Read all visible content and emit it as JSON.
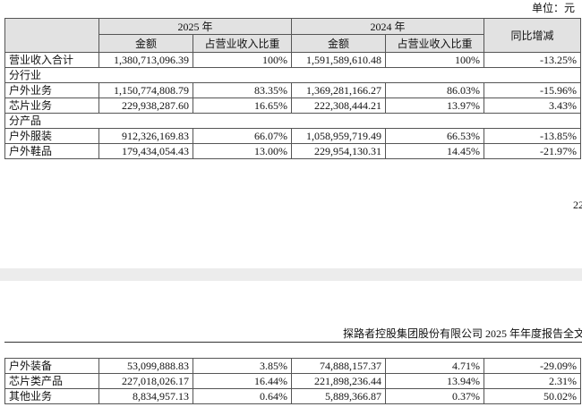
{
  "unit": "单位：元",
  "table": {
    "year_headers": [
      "2025 年",
      "2024 年"
    ],
    "sub_headers": [
      "金额",
      "占营业收入比重",
      "金额",
      "占营业收入比重"
    ],
    "change_header": "同比增减",
    "rows": [
      [
        "营业收入合计",
        "1,380,713,096.39",
        "100%",
        "1,591,589,610.48",
        "100%",
        "-13.25%"
      ],
      [
        "分行业"
      ],
      [
        "户外业务",
        "1,150,774,808.79",
        "83.35%",
        "1,369,281,166.27",
        "86.03%",
        "-15.96%"
      ],
      [
        "芯片业务",
        "229,938,287.60",
        "16.65%",
        "222,308,444.21",
        "13.97%",
        "3.43%"
      ],
      [
        "分产品"
      ],
      [
        "户外服装",
        "912,326,169.83",
        "66.07%",
        "1,058,959,719.49",
        "66.53%",
        "-13.85%"
      ],
      [
        "户外鞋品",
        "179,434,054.43",
        "13.00%",
        "229,954,130.31",
        "14.45%",
        "-21.97%"
      ]
    ]
  },
  "page_number": "22",
  "running_header": "探路者控股集团股份有限公司 2025 年年度报告全文",
  "continued_rows": [
    [
      "户外装备",
      "53,099,888.83",
      "3.85%",
      "74,888,157.37",
      "4.71%",
      "-29.09%"
    ],
    [
      "芯片类产品",
      "227,018,026.17",
      "16.44%",
      "221,898,236.44",
      "13.94%",
      "2.31%"
    ],
    [
      "其他业务",
      "8,834,957.13",
      "0.64%",
      "5,889,366.87",
      "0.37%",
      "50.02%"
    ]
  ]
}
